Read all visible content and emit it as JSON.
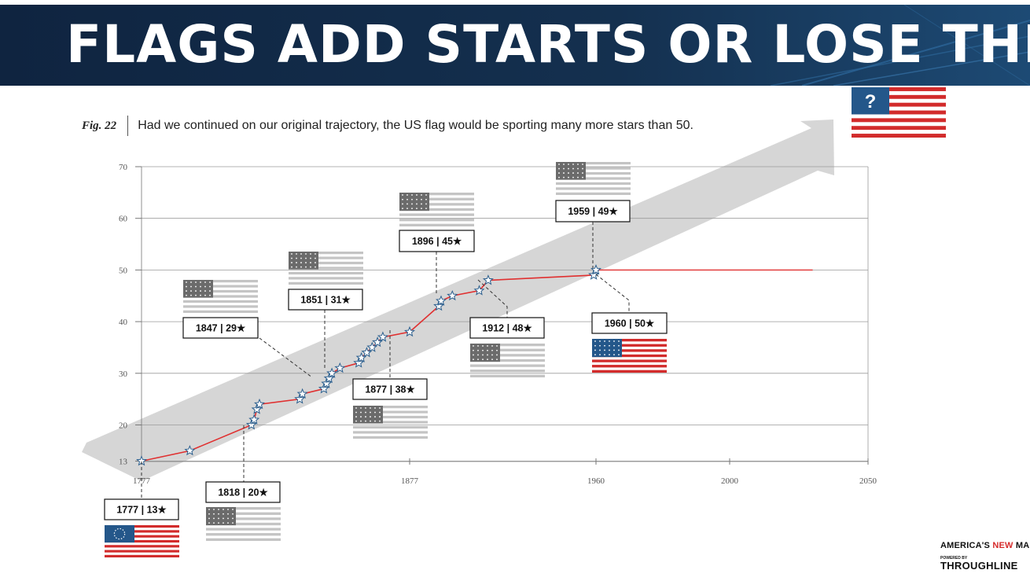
{
  "header": {
    "title": "FLAGS ADD STARTS OR LOSE THEM"
  },
  "caption": {
    "fig_label": "Fig. 22",
    "text": "Had we continued on our original trajectory, the US flag would be sporting many more stars than 50."
  },
  "future_flag": {
    "symbol": "?"
  },
  "brand": {
    "line1_part1": "AMERICA'S ",
    "line1_part2": "NEW",
    "line1_part3": " MAP",
    "line2": "POWERED BY",
    "line3": "THROUGHLINE"
  },
  "colors": {
    "banner": "#14304f",
    "line": "#e03030",
    "arrow": "#d6d6d6",
    "flag_red": "#d22b2b",
    "flag_blue": "#24578a",
    "gray_canton": "#6b6b6b",
    "gray_stripe": "#c4c4c4"
  },
  "chart_data": {
    "type": "line",
    "title": "",
    "xlabel": "",
    "ylabel": "",
    "x_ticks": [
      1777,
      1877,
      1960,
      2000,
      2050
    ],
    "y_ticks": [
      13,
      20,
      30,
      40,
      50,
      60,
      70
    ],
    "xlim": [
      1777,
      2050
    ],
    "ylim": [
      13,
      70
    ],
    "grid": true,
    "series": [
      {
        "name": "",
        "points": [
          [
            1777,
            13
          ],
          [
            1795,
            15
          ],
          [
            1818,
            20
          ],
          [
            1819,
            21
          ],
          [
            1820,
            23
          ],
          [
            1821,
            24
          ],
          [
            1836,
            25
          ],
          [
            1837,
            26
          ],
          [
            1845,
            27
          ],
          [
            1846,
            28
          ],
          [
            1847,
            29
          ],
          [
            1848,
            30
          ],
          [
            1851,
            31
          ],
          [
            1858,
            32
          ],
          [
            1859,
            33
          ],
          [
            1861,
            34
          ],
          [
            1863,
            35
          ],
          [
            1865,
            36
          ],
          [
            1867,
            37
          ],
          [
            1877,
            38
          ],
          [
            1890,
            43
          ],
          [
            1891,
            44
          ],
          [
            1896,
            45
          ],
          [
            1908,
            46
          ],
          [
            1912,
            48
          ],
          [
            1959,
            49
          ],
          [
            1960,
            50
          ]
        ]
      }
    ],
    "projection": {
      "from": [
        1960,
        50
      ],
      "to": [
        2030,
        50
      ]
    },
    "annotations": [
      {
        "label": "1777 | 13★",
        "year": 1777,
        "stars": 13
      },
      {
        "label": "1818 | 20★",
        "year": 1818,
        "stars": 20
      },
      {
        "label": "1847 | 29★",
        "year": 1847,
        "stars": 29
      },
      {
        "label": "1851 | 31★",
        "year": 1851,
        "stars": 31
      },
      {
        "label": "1877 | 38★",
        "year": 1877,
        "stars": 38
      },
      {
        "label": "1896 | 45★",
        "year": 1896,
        "stars": 45
      },
      {
        "label": "1912 | 48★",
        "year": 1912,
        "stars": 48
      },
      {
        "label": "1959 | 49★",
        "year": 1959,
        "stars": 49
      },
      {
        "label": "1960 | 50★",
        "year": 1960,
        "stars": 50
      }
    ]
  }
}
